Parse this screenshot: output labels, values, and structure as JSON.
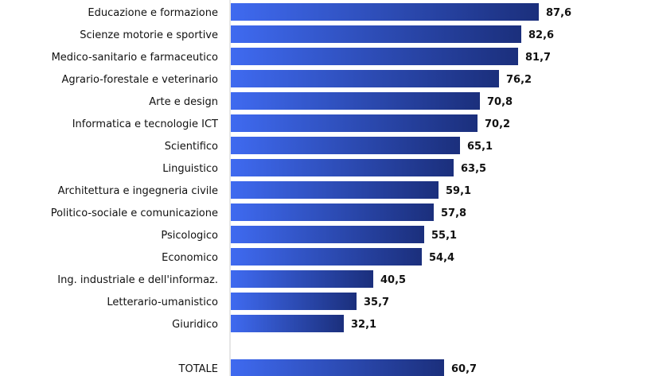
{
  "chart_data": {
    "type": "bar",
    "orientation": "horizontal",
    "categories": [
      "Educazione e formazione",
      "Scienze motorie e sportive",
      "Medico-sanitario e farmaceutico",
      "Agrario-forestale e veterinario",
      "Arte e design",
      "Informatica e tecnologie ICT",
      "Scientifico",
      "Linguistico",
      "Architettura e ingegneria civile",
      "Politico-sociale e comunicazione",
      "Psicologico",
      "Economico",
      "Ing. industriale e dell'informaz.",
      "Letterario-umanistico",
      "Giuridico",
      "TOTALE"
    ],
    "values": [
      87.6,
      82.6,
      81.7,
      76.2,
      70.8,
      70.2,
      65.1,
      63.5,
      59.1,
      57.8,
      55.1,
      54.4,
      40.5,
      35.7,
      32.1,
      60.7
    ],
    "value_labels": [
      "87,6",
      "82,6",
      "81,7",
      "76,2",
      "70,8",
      "70,2",
      "65,1",
      "63,5",
      "59,1",
      "57,8",
      "55,1",
      "54,4",
      "40,5",
      "35,7",
      "32,1",
      "60,7"
    ],
    "xlim": [
      0,
      100
    ],
    "grid": false,
    "colors": {
      "bar_light": "#3f6af0",
      "bar_dark": "#1b2f7c",
      "axis": "#cccccc",
      "text": "#111111"
    }
  }
}
